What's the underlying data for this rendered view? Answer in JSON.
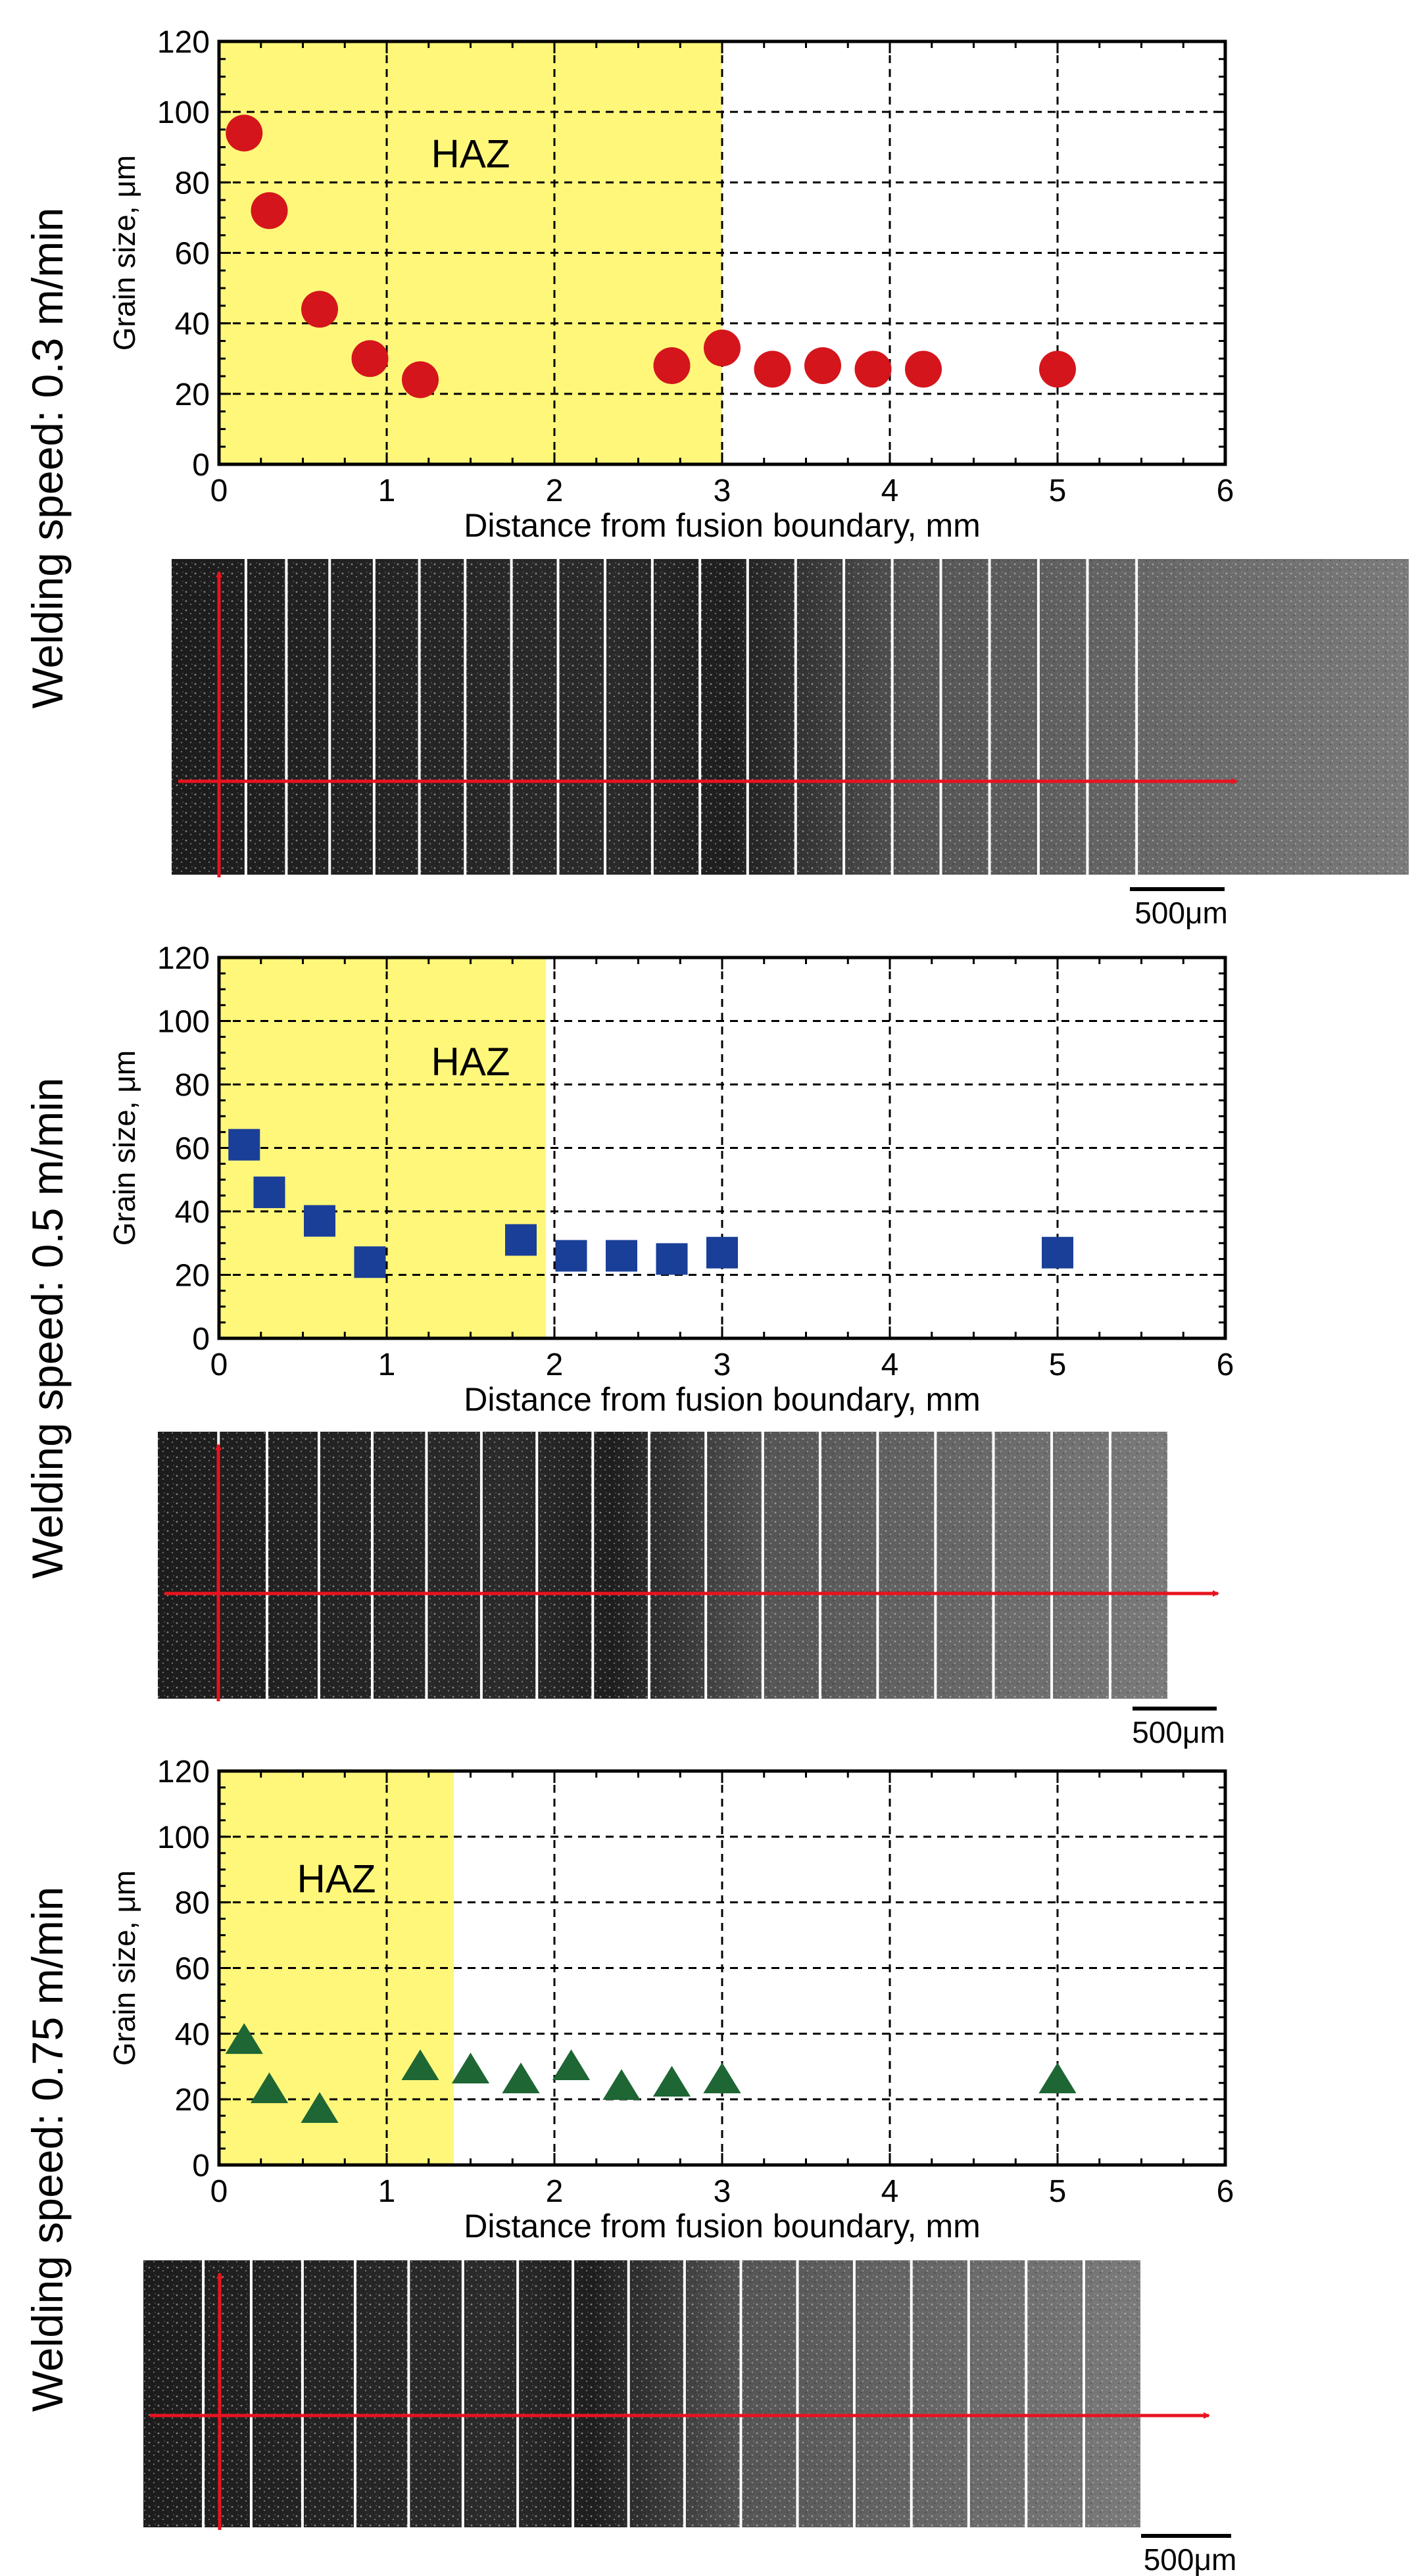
{
  "colors": {
    "haz_fill": "#fff77a",
    "axis": "#000000",
    "grid": "#000000",
    "arrow": "#e8131f",
    "micro_bg": "#2e2e2e",
    "divider": "#ffffff"
  },
  "scale_bar_label": "500μm",
  "chart_data": [
    {
      "type": "scatter",
      "panel_label": "Welding speed: 0.3 m/min",
      "xlabel": "Distance from fusion boundary, mm",
      "ylabel": "Grain size, μm",
      "xlim": [
        0,
        6
      ],
      "ylim": [
        0,
        120
      ],
      "x_ticks": [
        0,
        1,
        2,
        3,
        4,
        5,
        6
      ],
      "y_ticks": [
        0,
        20,
        40,
        60,
        80,
        100,
        120
      ],
      "haz_label": "HAZ",
      "haz_extent": [
        0,
        3
      ],
      "haz_label_pos": [
        1.5,
        88
      ],
      "marker": "circle",
      "color": "#d4151c",
      "x": [
        0.15,
        0.3,
        0.6,
        0.9,
        1.2,
        2.7,
        3.0,
        3.3,
        3.6,
        3.9,
        4.2,
        5.0
      ],
      "y": [
        94,
        72,
        44,
        30,
        24,
        28,
        33,
        27,
        28,
        27,
        27,
        27
      ],
      "micro_dividers": 20,
      "micro_extent": [
        0.0,
        1.0
      ]
    },
    {
      "type": "scatter",
      "panel_label": "Welding speed: 0.5 m/min",
      "xlabel": "Distance from fusion boundary, mm",
      "ylabel": "Grain size, μm",
      "xlim": [
        0,
        6
      ],
      "ylim": [
        0,
        120
      ],
      "x_ticks": [
        0,
        1,
        2,
        3,
        4,
        5,
        6
      ],
      "y_ticks": [
        0,
        20,
        40,
        60,
        80,
        100,
        120
      ],
      "haz_label": "HAZ",
      "haz_extent": [
        0,
        1.95
      ],
      "haz_label_pos": [
        1.5,
        87
      ],
      "marker": "square",
      "color": "#1a3f98",
      "x": [
        0.15,
        0.3,
        0.6,
        0.9,
        1.8,
        2.1,
        2.4,
        2.7,
        3.0,
        5.0
      ],
      "y": [
        61,
        46,
        37,
        24,
        31,
        26,
        26,
        25,
        27,
        27
      ],
      "micro_dividers": 18,
      "micro_extent": [
        0.0,
        1.0
      ]
    },
    {
      "type": "scatter",
      "panel_label": "Welding speed: 0.75 m/min",
      "xlabel": "Distance from fusion boundary, mm",
      "ylabel": "Grain size, μm",
      "xlim": [
        0,
        6
      ],
      "ylim": [
        0,
        120
      ],
      "x_ticks": [
        0,
        1,
        2,
        3,
        4,
        5,
        6
      ],
      "y_ticks": [
        0,
        20,
        40,
        60,
        80,
        100,
        120
      ],
      "haz_label": "HAZ",
      "haz_extent": [
        0,
        1.4
      ],
      "haz_label_pos": [
        0.7,
        87
      ],
      "marker": "triangle",
      "color": "#1e6634",
      "x": [
        0.15,
        0.3,
        0.6,
        1.2,
        1.5,
        1.8,
        2.1,
        2.4,
        2.7,
        3.0,
        5.0
      ],
      "y": [
        38,
        23,
        17,
        30,
        29,
        26,
        30,
        24,
        25,
        26,
        26
      ],
      "micro_dividers": 18,
      "micro_extent": [
        0.0,
        1.0
      ]
    }
  ]
}
